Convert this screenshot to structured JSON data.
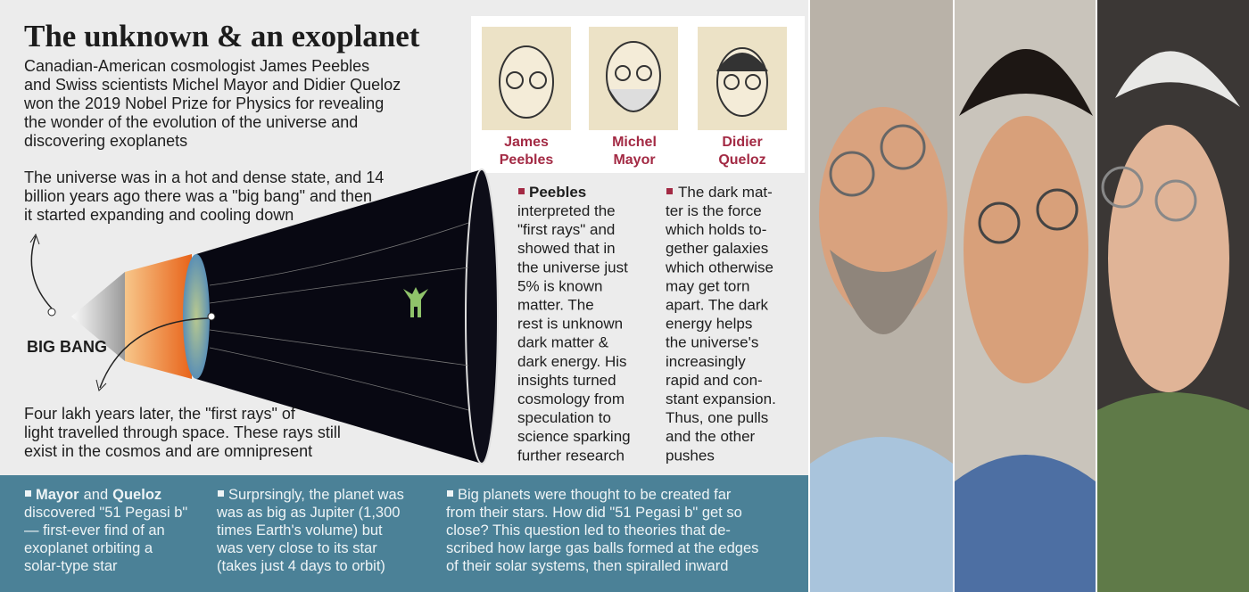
{
  "header": {
    "title": "The unknown & an exoplanet",
    "intro": [
      "Canadian-American cosmologist James Peebles",
      "and Swiss scientists Michel Mayor and Didier Queloz",
      "won the 2019 Nobel Prize for Physics for revealing",
      "the wonder of the evolution of the universe and",
      "discovering exoplanets"
    ]
  },
  "laureates": [
    {
      "name": [
        "James",
        "Peebles"
      ]
    },
    {
      "name": [
        "Michel",
        "Mayor"
      ]
    },
    {
      "name": [
        "Didier",
        "Queloz"
      ]
    }
  ],
  "big_bang": {
    "top_text": [
      "The universe was in a hot and dense state, and 14",
      "billion years ago there was a \"big bang\" and then",
      "it started expanding and cooling down"
    ],
    "label": "BIG BANG",
    "bottom_text": [
      "Four lakh years later, the \"first rays\" of",
      "light travelled through space. These rays still",
      "exist in the cosmos and are omnipresent"
    ]
  },
  "peebles_column": {
    "lead": "Peebles",
    "lines": [
      "interpreted the",
      "\"first rays\" and",
      "showed that in",
      "the universe just",
      "5% is known",
      "matter. The",
      "rest is unknown",
      "dark matter &",
      "dark energy. His",
      "insights turned",
      "cosmology from",
      "speculation to",
      "science sparking",
      "further research"
    ]
  },
  "dark_matter_column": {
    "lines": [
      "The dark mat-",
      "ter is the force",
      "which holds to-",
      "gether galaxies",
      "which otherwise",
      "may get torn",
      "apart. The dark",
      "energy helps",
      "the universe's",
      "increasingly",
      "rapid and con-",
      "stant expansion.",
      "Thus, one pulls",
      "and the other",
      "pushes"
    ]
  },
  "footer": {
    "col1": {
      "name1": "Mayor",
      "joiner": "and",
      "name2": "Queloz",
      "lines": [
        "discovered \"51 Pegasi b\"",
        "— first-ever find of an",
        "exoplanet orbiting a",
        "solar-type star"
      ]
    },
    "col2": {
      "lines": [
        "Surprsingly, the planet was",
        "was as big as Jupiter (1,300",
        "times Earth's volume) but",
        "was very close to its star",
        "(takes just 4 days to orbit)"
      ]
    },
    "col3": {
      "lines": [
        "Big planets were thought to be created far",
        "from their stars. How did \"51 Pegasi b\" get so",
        "close? This question led to theories that de-",
        "scribed how large gas balls formed at the edges",
        "of their solar systems, then spiralled inward"
      ]
    }
  }
}
